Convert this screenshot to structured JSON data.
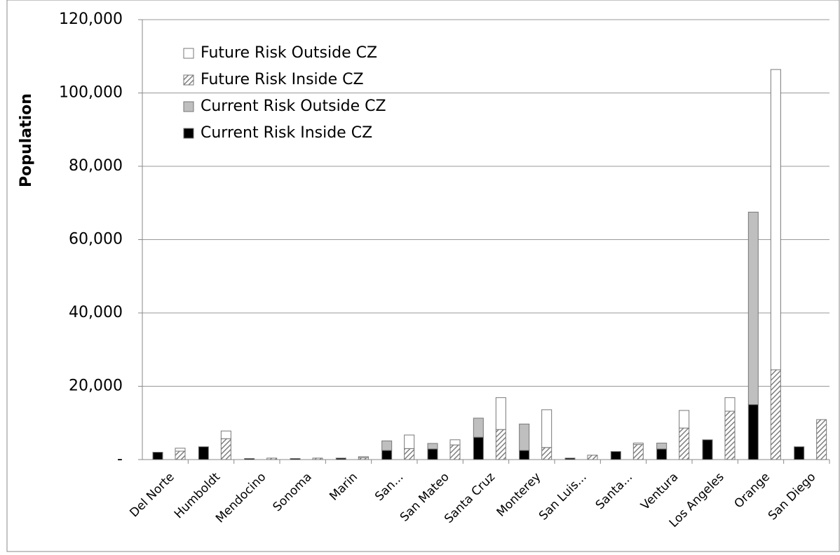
{
  "chart_data": {
    "type": "bar",
    "y_label": "Population",
    "categories": [
      "Del Norte",
      "Humboldt",
      "Mendocino",
      "Sonoma",
      "Marin",
      "San...",
      "San Mateo",
      "Santa Cruz",
      "Monterey",
      "San Luis...",
      "Santa...",
      "Ventura",
      "Los Angeles",
      "Orange",
      "San Diego"
    ],
    "series": [
      {
        "name": "Future Risk Outside CZ",
        "color": "#ffffff",
        "values": [
          800,
          2100,
          0,
          0,
          300,
          3700,
          1400,
          8700,
          10300,
          0,
          400,
          4800,
          3700,
          81900,
          0
        ]
      },
      {
        "name": "Future Risk Inside CZ",
        "color": "#7f7f7f",
        "hatch": true,
        "values": [
          2300,
          5700,
          400,
          400,
          500,
          3000,
          4000,
          8200,
          3300,
          1200,
          4100,
          8600,
          13200,
          24500,
          10900
        ]
      },
      {
        "name": "Current Risk Outside CZ",
        "color": "#bfbfbf",
        "values": [
          0,
          0,
          0,
          0,
          0,
          2600,
          1500,
          5200,
          7200,
          0,
          0,
          1600,
          0,
          52500,
          0
        ]
      },
      {
        "name": "Current Risk Inside CZ",
        "color": "#000000",
        "values": [
          2000,
          3500,
          300,
          300,
          400,
          2500,
          2900,
          6100,
          2500,
          400,
          2200,
          2900,
          5400,
          15000,
          3500
        ]
      }
    ],
    "ylim": [
      0,
      120000
    ],
    "yticks": [
      {
        "value": 0,
        "label": "-"
      },
      {
        "value": 20000,
        "label": "20,000"
      },
      {
        "value": 40000,
        "label": "40,000"
      },
      {
        "value": 60000,
        "label": "60,000"
      },
      {
        "value": 80000,
        "label": "80,000"
      },
      {
        "value": 100000,
        "label": "100,000"
      },
      {
        "value": 120000,
        "label": "120,000"
      }
    ],
    "grid": true,
    "legend": "upper left"
  }
}
